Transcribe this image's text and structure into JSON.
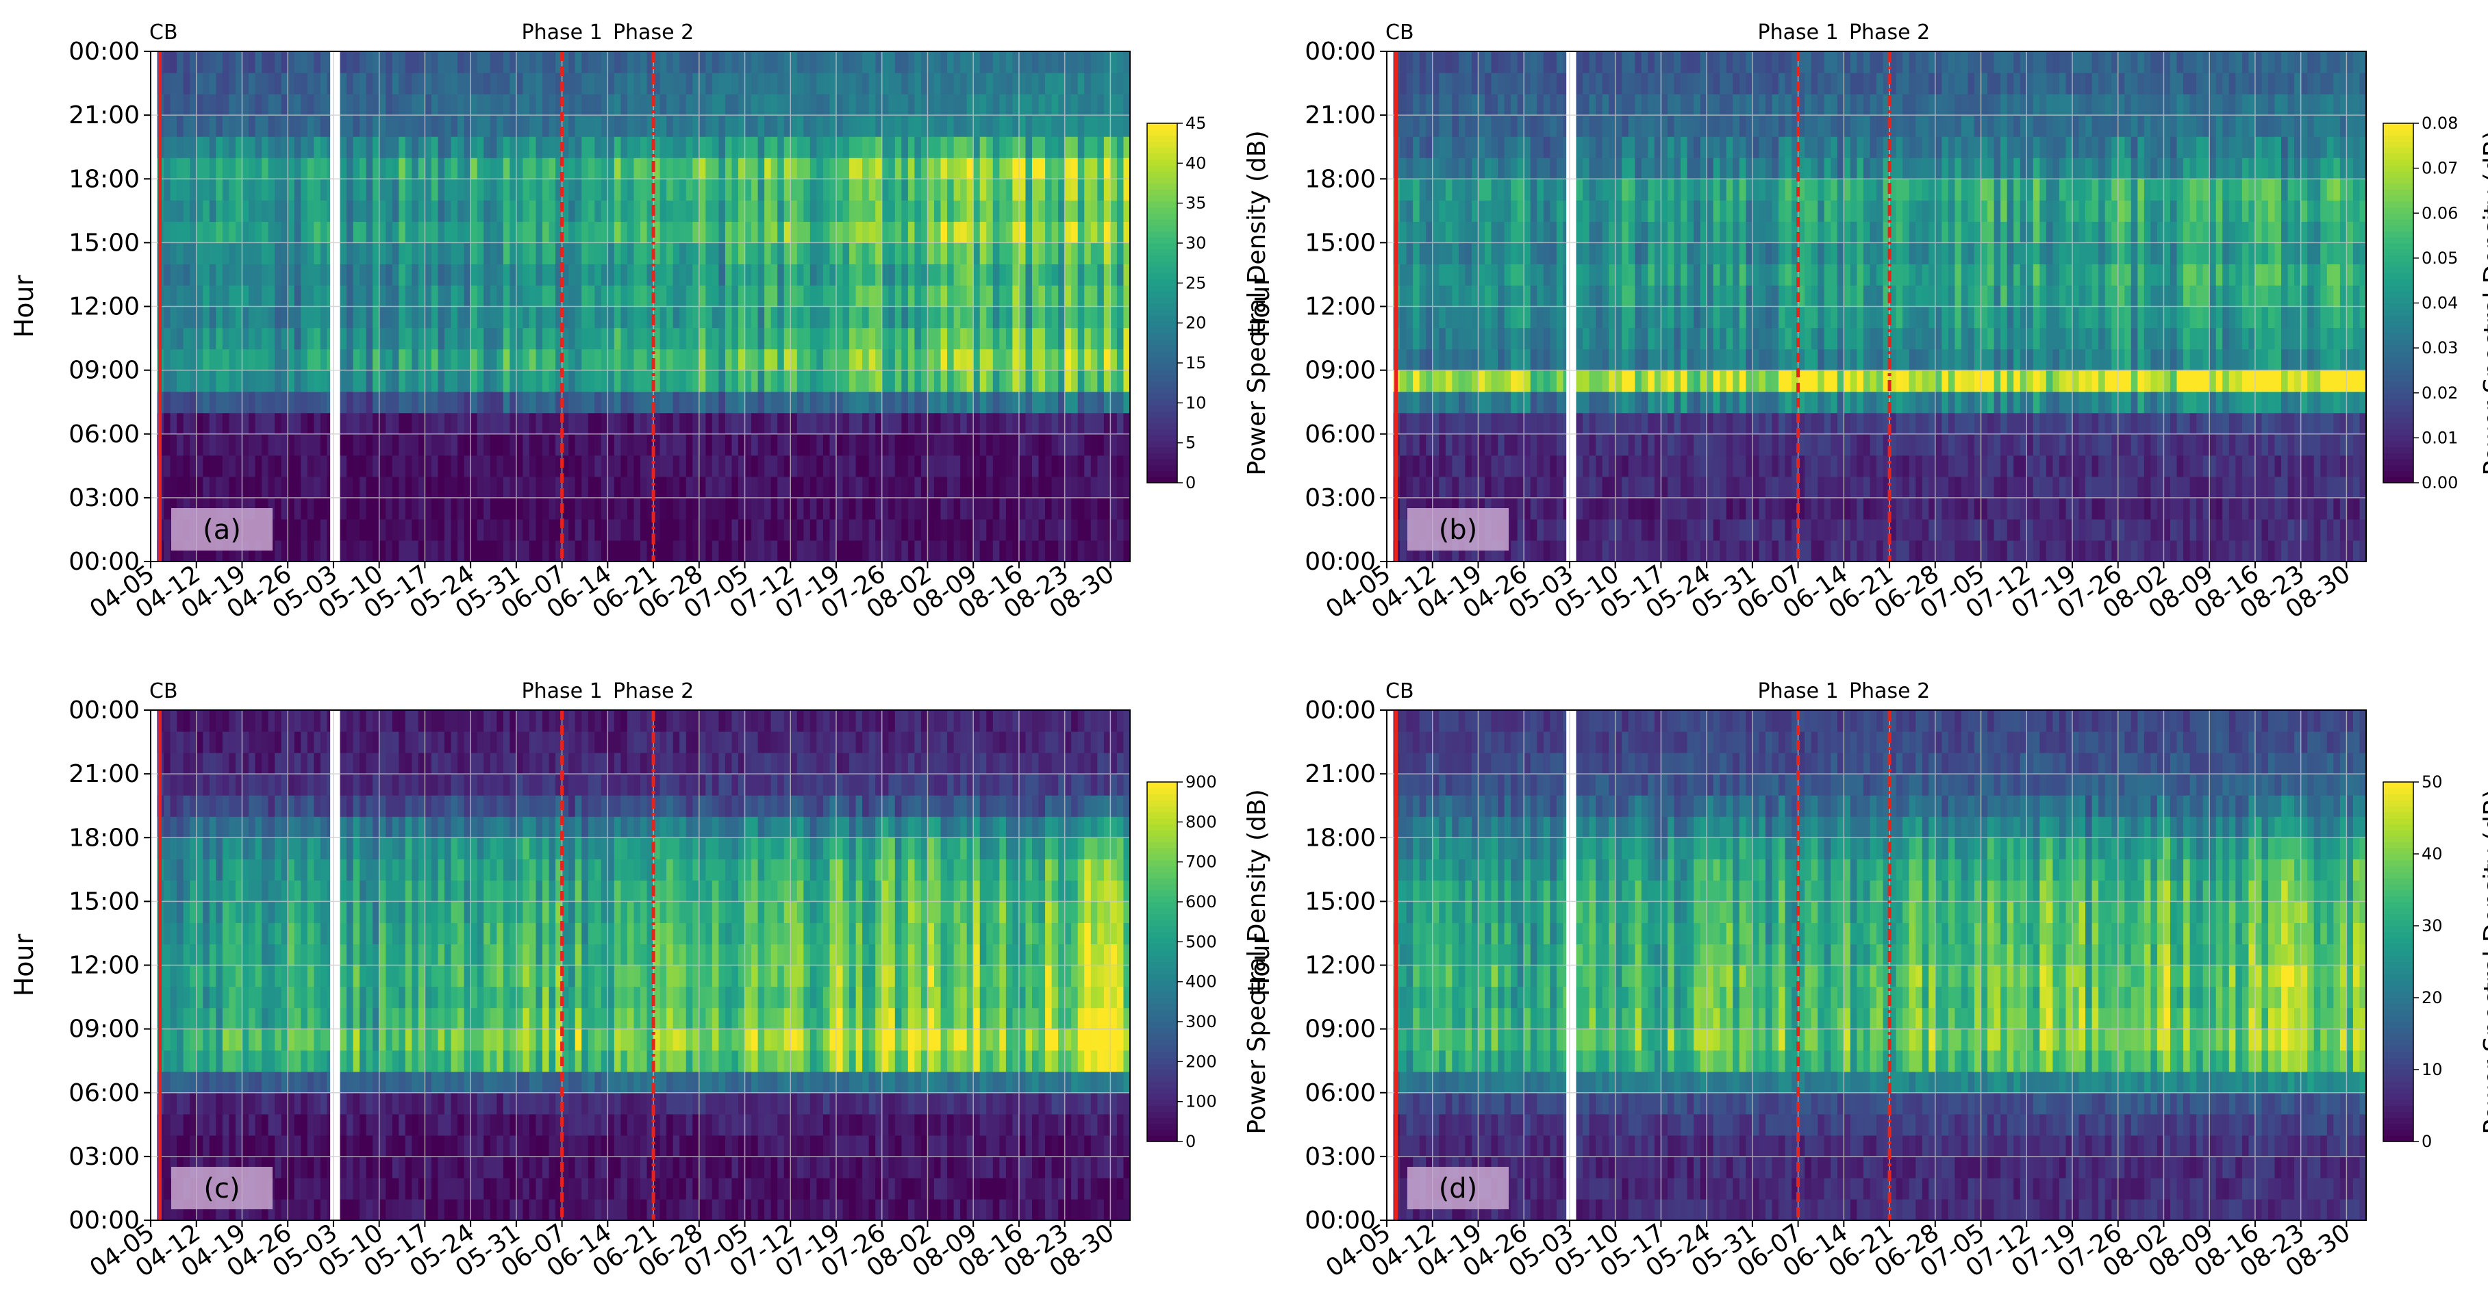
{
  "common": {
    "ylabel": "Hour",
    "colorbar_label": "Power Spectral Density (dB)",
    "y_ticks": [
      "00:00",
      "03:00",
      "06:00",
      "09:00",
      "12:00",
      "15:00",
      "18:00",
      "21:00",
      "00:00"
    ],
    "x_ticks": [
      "04-05",
      "04-12",
      "04-19",
      "04-26",
      "05-03",
      "05-10",
      "05-17",
      "05-24",
      "05-31",
      "06-07",
      "06-14",
      "06-21",
      "06-28",
      "07-05",
      "07-12",
      "07-19",
      "07-26",
      "08-02",
      "08-09",
      "08-16",
      "08-23",
      "08-30"
    ],
    "markers": [
      {
        "label": "CB",
        "day": 1,
        "style": "solid",
        "color": "#e8231c"
      },
      {
        "label": "Phase 1",
        "day": 63,
        "style": "dashed",
        "color": "#e8231c"
      },
      {
        "label": "Phase 2",
        "day": 77,
        "style": "dashdot",
        "color": "#e8231c"
      }
    ],
    "gap_days": [
      27.5,
      28.3
    ],
    "days": 150,
    "colormap": "viridis"
  },
  "chart_data": [
    {
      "type": "heatmap",
      "panel_label": "(a)",
      "colorbar_ticks": [
        "0",
        "5",
        "10",
        "15",
        "20",
        "25",
        "30",
        "35",
        "40",
        "45"
      ],
      "clim": [
        0,
        45
      ],
      "hourly_profile": [
        0.03,
        0.03,
        0.03,
        0.03,
        0.04,
        0.05,
        0.08,
        0.32,
        0.62,
        0.7,
        0.62,
        0.55,
        0.6,
        0.55,
        0.6,
        0.7,
        0.62,
        0.65,
        0.72,
        0.55,
        0.42,
        0.4,
        0.38,
        0.35
      ],
      "trend": [
        0.7,
        1.18
      ]
    },
    {
      "type": "heatmap",
      "panel_label": "(b)",
      "colorbar_ticks": [
        "0.00",
        "0.01",
        "0.02",
        "0.03",
        "0.04",
        "0.05",
        "0.06",
        "0.07",
        "0.08"
      ],
      "clim": [
        0,
        0.08
      ],
      "hourly_profile": [
        0.12,
        0.12,
        0.1,
        0.12,
        0.12,
        0.14,
        0.18,
        0.45,
        0.95,
        0.45,
        0.48,
        0.52,
        0.55,
        0.58,
        0.52,
        0.55,
        0.58,
        0.6,
        0.45,
        0.4,
        0.35,
        0.35,
        0.3,
        0.3
      ],
      "trend": [
        0.85,
        1.12
      ]
    },
    {
      "type": "heatmap",
      "panel_label": "(c)",
      "colorbar_ticks": [
        "0",
        "100",
        "200",
        "300",
        "400",
        "500",
        "600",
        "700",
        "800",
        "900"
      ],
      "clim": [
        0,
        900
      ],
      "hourly_profile": [
        0.04,
        0.04,
        0.05,
        0.05,
        0.07,
        0.12,
        0.35,
        0.72,
        0.82,
        0.72,
        0.68,
        0.7,
        0.68,
        0.66,
        0.65,
        0.62,
        0.6,
        0.55,
        0.42,
        0.25,
        0.16,
        0.12,
        0.1,
        0.08
      ],
      "trend": [
        0.78,
        1.2
      ]
    },
    {
      "type": "heatmap",
      "panel_label": "(d)",
      "colorbar_ticks": [
        "0",
        "10",
        "20",
        "30",
        "40",
        "50"
      ],
      "clim": [
        0,
        50
      ],
      "hourly_profile": [
        0.12,
        0.12,
        0.12,
        0.14,
        0.18,
        0.24,
        0.45,
        0.68,
        0.76,
        0.72,
        0.7,
        0.72,
        0.68,
        0.66,
        0.66,
        0.64,
        0.6,
        0.55,
        0.45,
        0.35,
        0.28,
        0.25,
        0.22,
        0.2
      ],
      "trend": [
        0.85,
        1.12
      ]
    }
  ]
}
